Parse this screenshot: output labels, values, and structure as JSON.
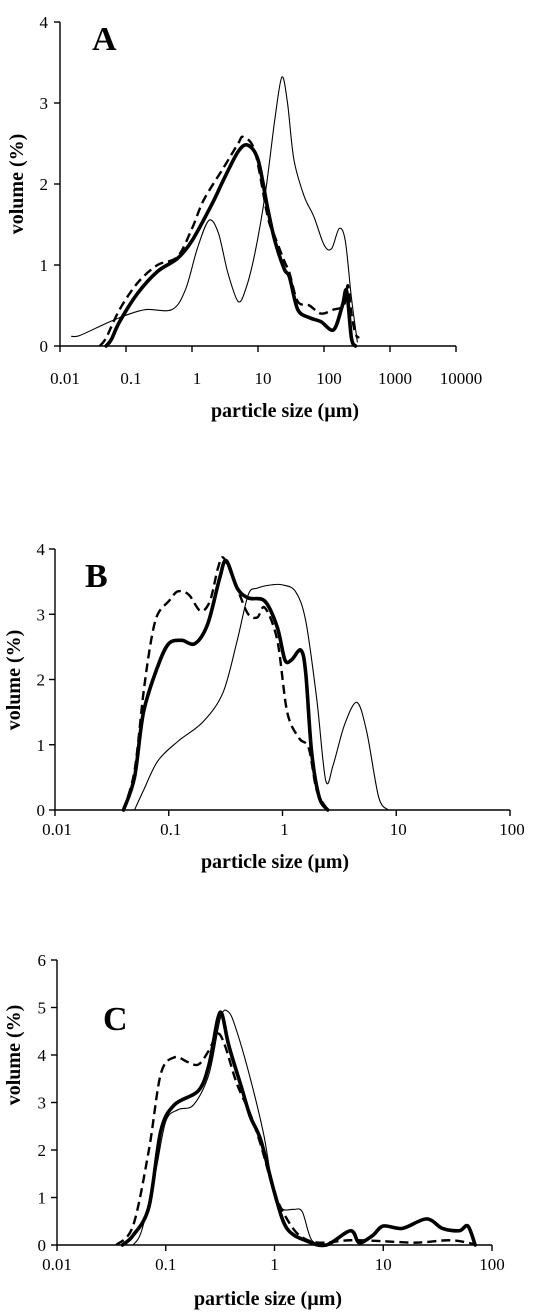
{
  "chart_data": [
    {
      "type": "line",
      "panel": "A",
      "xlabel": "particle size (µm)",
      "ylabel": "volume (%)",
      "x_scale": "log",
      "xlim": [
        0.01,
        10000
      ],
      "ylim": [
        0,
        4
      ],
      "x_tick_labels": [
        "0.01",
        "0.1",
        "1",
        "10",
        "100",
        "1000",
        "10000"
      ],
      "y_tick_labels": [
        "0",
        "1",
        "2",
        "3",
        "4"
      ],
      "series": [
        {
          "style": "thin",
          "points": [
            [
              0.015,
              0.12
            ],
            [
              0.02,
              0.13
            ],
            [
              0.05,
              0.28
            ],
            [
              0.1,
              0.38
            ],
            [
              0.2,
              0.45
            ],
            [
              0.5,
              0.45
            ],
            [
              0.8,
              0.7
            ],
            [
              1.2,
              1.2
            ],
            [
              1.8,
              1.55
            ],
            [
              2.5,
              1.4
            ],
            [
              3.5,
              0.9
            ],
            [
              5,
              0.55
            ],
            [
              6.5,
              0.7
            ],
            [
              9,
              1.15
            ],
            [
              13,
              1.9
            ],
            [
              18,
              2.8
            ],
            [
              23,
              3.32
            ],
            [
              28,
              3.0
            ],
            [
              35,
              2.3
            ],
            [
              50,
              1.85
            ],
            [
              70,
              1.6
            ],
            [
              100,
              1.25
            ],
            [
              130,
              1.2
            ],
            [
              170,
              1.45
            ],
            [
              210,
              1.3
            ],
            [
              260,
              0.6
            ],
            [
              320,
              0.05
            ]
          ]
        },
        {
          "style": "thick",
          "points": [
            [
              0.05,
              0.0
            ],
            [
              0.06,
              0.08
            ],
            [
              0.08,
              0.3
            ],
            [
              0.15,
              0.65
            ],
            [
              0.3,
              0.92
            ],
            [
              0.6,
              1.08
            ],
            [
              1.0,
              1.3
            ],
            [
              2,
              1.75
            ],
            [
              3,
              2.05
            ],
            [
              5,
              2.4
            ],
            [
              7,
              2.48
            ],
            [
              10,
              2.3
            ],
            [
              14,
              1.7
            ],
            [
              18,
              1.3
            ],
            [
              25,
              0.95
            ],
            [
              30,
              0.85
            ],
            [
              40,
              0.45
            ],
            [
              60,
              0.35
            ],
            [
              90,
              0.3
            ],
            [
              140,
              0.2
            ],
            [
              190,
              0.5
            ],
            [
              220,
              0.68
            ],
            [
              260,
              0.1
            ],
            [
              300,
              0.0
            ]
          ]
        },
        {
          "style": "dashed",
          "points": [
            [
              0.04,
              0.0
            ],
            [
              0.05,
              0.1
            ],
            [
              0.08,
              0.45
            ],
            [
              0.15,
              0.78
            ],
            [
              0.3,
              1.0
            ],
            [
              0.6,
              1.1
            ],
            [
              1.0,
              1.45
            ],
            [
              1.5,
              1.8
            ],
            [
              3,
              2.2
            ],
            [
              5,
              2.5
            ],
            [
              6,
              2.58
            ],
            [
              9,
              2.4
            ],
            [
              14,
              1.6
            ],
            [
              18,
              1.35
            ],
            [
              25,
              1.05
            ],
            [
              30,
              0.9
            ],
            [
              40,
              0.55
            ],
            [
              60,
              0.5
            ],
            [
              90,
              0.4
            ],
            [
              140,
              0.45
            ],
            [
              200,
              0.5
            ],
            [
              230,
              0.75
            ],
            [
              260,
              0.4
            ],
            [
              300,
              0.15
            ],
            [
              340,
              0.1
            ]
          ]
        }
      ]
    },
    {
      "type": "line",
      "panel": "B",
      "xlabel": "particle size (µm)",
      "ylabel": "volume (%)",
      "x_scale": "log",
      "xlim": [
        0.01,
        100
      ],
      "ylim": [
        0,
        4
      ],
      "x_tick_labels": [
        "0.01",
        "0.1",
        "1",
        "10",
        "100"
      ],
      "y_tick_labels": [
        "0",
        "1",
        "2",
        "3",
        "4"
      ],
      "series": [
        {
          "style": "thin",
          "points": [
            [
              0.05,
              0.0
            ],
            [
              0.06,
              0.3
            ],
            [
              0.08,
              0.75
            ],
            [
              0.12,
              1.05
            ],
            [
              0.2,
              1.35
            ],
            [
              0.3,
              1.8
            ],
            [
              0.4,
              2.6
            ],
            [
              0.5,
              3.3
            ],
            [
              0.6,
              3.4
            ],
            [
              0.8,
              3.45
            ],
            [
              1.0,
              3.45
            ],
            [
              1.3,
              3.35
            ],
            [
              1.6,
              2.9
            ],
            [
              2.0,
              1.7
            ],
            [
              2.4,
              0.45
            ],
            [
              2.8,
              0.7
            ],
            [
              3.5,
              1.3
            ],
            [
              4.5,
              1.65
            ],
            [
              5.5,
              1.2
            ],
            [
              7,
              0.2
            ],
            [
              8.5,
              0.0
            ]
          ]
        },
        {
          "style": "thick",
          "points": [
            [
              0.04,
              0.0
            ],
            [
              0.05,
              0.5
            ],
            [
              0.06,
              1.5
            ],
            [
              0.08,
              2.2
            ],
            [
              0.1,
              2.55
            ],
            [
              0.13,
              2.6
            ],
            [
              0.17,
              2.55
            ],
            [
              0.22,
              2.85
            ],
            [
              0.28,
              3.55
            ],
            [
              0.32,
              3.82
            ],
            [
              0.4,
              3.4
            ],
            [
              0.5,
              3.25
            ],
            [
              0.7,
              3.2
            ],
            [
              0.9,
              2.8
            ],
            [
              1.05,
              2.3
            ],
            [
              1.2,
              2.3
            ],
            [
              1.45,
              2.45
            ],
            [
              1.6,
              2.1
            ],
            [
              1.8,
              0.9
            ],
            [
              2.1,
              0.2
            ],
            [
              2.5,
              0.0
            ]
          ]
        },
        {
          "style": "dashed",
          "points": [
            [
              0.04,
              0.0
            ],
            [
              0.05,
              0.6
            ],
            [
              0.06,
              1.8
            ],
            [
              0.07,
              2.6
            ],
            [
              0.08,
              3.0
            ],
            [
              0.1,
              3.2
            ],
            [
              0.12,
              3.35
            ],
            [
              0.15,
              3.3
            ],
            [
              0.19,
              3.05
            ],
            [
              0.23,
              3.2
            ],
            [
              0.27,
              3.7
            ],
            [
              0.3,
              3.87
            ],
            [
              0.36,
              3.6
            ],
            [
              0.42,
              3.3
            ],
            [
              0.5,
              3.0
            ],
            [
              0.6,
              2.95
            ],
            [
              0.7,
              3.1
            ],
            [
              0.9,
              2.6
            ],
            [
              1.1,
              1.5
            ],
            [
              1.4,
              1.1
            ],
            [
              1.7,
              0.95
            ],
            [
              2.0,
              0.3
            ],
            [
              2.5,
              0.0
            ]
          ]
        }
      ]
    },
    {
      "type": "line",
      "panel": "C",
      "xlabel": "particle size (µm)",
      "ylabel": "volume (%)",
      "x_scale": "log",
      "xlim": [
        0.01,
        100
      ],
      "ylim": [
        0,
        6
      ],
      "x_tick_labels": [
        "0.01",
        "0.1",
        "1",
        "10",
        "100"
      ],
      "y_tick_labels": [
        "0",
        "1",
        "2",
        "3",
        "4",
        "5",
        "6"
      ],
      "series": [
        {
          "style": "thin",
          "points": [
            [
              0.05,
              0.0
            ],
            [
              0.06,
              0.3
            ],
            [
              0.08,
              1.5
            ],
            [
              0.1,
              2.6
            ],
            [
              0.13,
              2.85
            ],
            [
              0.18,
              2.95
            ],
            [
              0.25,
              3.6
            ],
            [
              0.32,
              4.8
            ],
            [
              0.38,
              4.9
            ],
            [
              0.45,
              4.5
            ],
            [
              0.6,
              3.5
            ],
            [
              0.8,
              2.3
            ],
            [
              1.0,
              1.0
            ],
            [
              1.2,
              0.75
            ],
            [
              1.5,
              0.75
            ],
            [
              1.8,
              0.7
            ],
            [
              2.2,
              0.1
            ],
            [
              3,
              0.0
            ]
          ]
        },
        {
          "style": "thick",
          "points": [
            [
              0.04,
              0.0
            ],
            [
              0.05,
              0.2
            ],
            [
              0.07,
              0.8
            ],
            [
              0.09,
              2.4
            ],
            [
              0.12,
              2.95
            ],
            [
              0.2,
              3.25
            ],
            [
              0.25,
              3.8
            ],
            [
              0.3,
              4.75
            ],
            [
              0.33,
              4.85
            ],
            [
              0.38,
              4.2
            ],
            [
              0.5,
              3.3
            ],
            [
              0.6,
              2.7
            ],
            [
              0.75,
              2.2
            ],
            [
              1.0,
              1.1
            ],
            [
              1.3,
              0.35
            ],
            [
              2,
              0.08
            ],
            [
              3,
              0.0
            ],
            [
              5,
              0.3
            ],
            [
              6,
              0.05
            ],
            [
              8,
              0.2
            ],
            [
              10,
              0.4
            ],
            [
              15,
              0.35
            ],
            [
              25,
              0.55
            ],
            [
              35,
              0.35
            ],
            [
              50,
              0.3
            ],
            [
              60,
              0.4
            ],
            [
              70,
              0.0
            ]
          ]
        },
        {
          "style": "dashed",
          "points": [
            [
              0.035,
              0.0
            ],
            [
              0.05,
              0.4
            ],
            [
              0.07,
              2.0
            ],
            [
              0.09,
              3.6
            ],
            [
              0.12,
              3.95
            ],
            [
              0.16,
              3.85
            ],
            [
              0.2,
              3.8
            ],
            [
              0.25,
              4.1
            ],
            [
              0.3,
              4.45
            ],
            [
              0.35,
              4.2
            ],
            [
              0.45,
              3.4
            ],
            [
              0.6,
              2.75
            ],
            [
              0.75,
              2.1
            ],
            [
              1.0,
              1.1
            ],
            [
              1.3,
              0.55
            ],
            [
              1.7,
              0.2
            ],
            [
              2.5,
              0.05
            ],
            [
              5,
              0.1
            ],
            [
              10,
              0.08
            ],
            [
              20,
              0.05
            ],
            [
              40,
              0.1
            ],
            [
              60,
              0.05
            ],
            [
              70,
              0.0
            ]
          ]
        }
      ]
    }
  ]
}
